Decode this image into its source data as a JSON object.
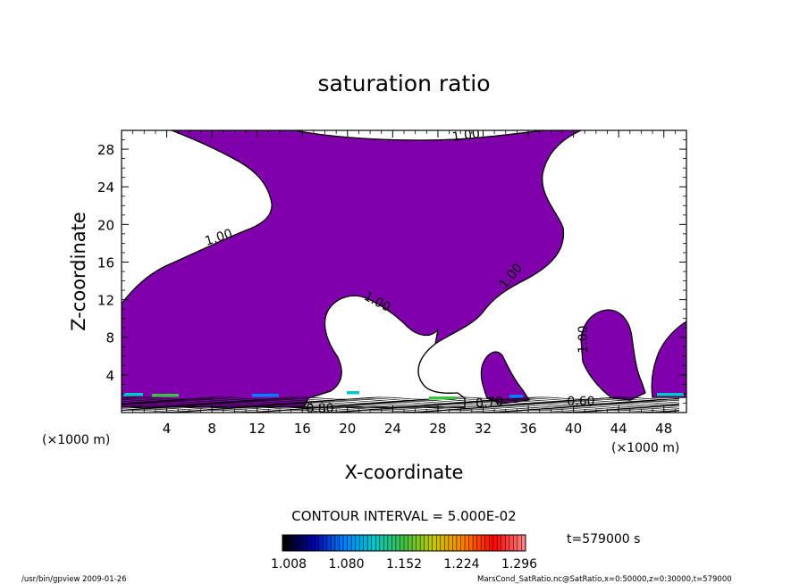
{
  "chart_data": {
    "type": "contour",
    "title": "saturation ratio",
    "xlabel": "X-coordinate",
    "ylabel": "Z-coordinate",
    "x_unit": "(×1000 m)",
    "z_unit": "(×1000 m)",
    "xlim": [
      0,
      50
    ],
    "ylim": [
      0,
      30
    ],
    "x_ticks": [
      4,
      8,
      12,
      16,
      20,
      24,
      28,
      32,
      36,
      40,
      44,
      48
    ],
    "y_ticks": [
      4,
      8,
      12,
      16,
      20,
      24,
      28
    ],
    "contour_interval_text": "CONTOUR INTERVAL = 5.000E-02",
    "contour_labels": [
      "1.00",
      "1.00",
      "1.00",
      "1.00",
      "1.00",
      "0.80",
      "0.70",
      "0.60"
    ],
    "supersaturated_fill_color": "#7f00aa",
    "colorbar": {
      "tick_labels": [
        "1.008",
        "1.080",
        "1.152",
        "1.224",
        "1.296"
      ],
      "min": 1.008,
      "max": 1.296,
      "colors": [
        "#000000",
        "#0000aa",
        "#0080ff",
        "#00c8c8",
        "#40c040",
        "#c8c800",
        "#ff8000",
        "#ff0000",
        "#ff8080"
      ]
    },
    "time_label": "t=579000 s",
    "footer_left": "/usr/bin/gpview   2009-01-26",
    "footer_right": "MarsCond_SatRatio.nc@SatRatio,x=0:50000,z=0:30000,t=579000"
  }
}
